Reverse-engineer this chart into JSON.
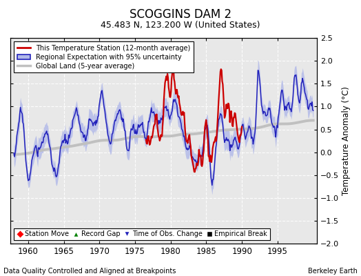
{
  "title": "SCOGGINS DAM 2",
  "subtitle": "45.483 N, 123.200 W (United States)",
  "ylabel": "Temperature Anomaly (°C)",
  "xlabel_left": "Data Quality Controlled and Aligned at Breakpoints",
  "xlabel_right": "Berkeley Earth",
  "ylim": [
    -2.0,
    2.5
  ],
  "xlim": [
    1957.5,
    2000.5
  ],
  "xticks": [
    1960,
    1965,
    1970,
    1975,
    1980,
    1985,
    1990,
    1995
  ],
  "yticks": [
    -2.0,
    -1.5,
    -1.0,
    -0.5,
    0.0,
    0.5,
    1.0,
    1.5,
    2.0,
    2.5
  ],
  "bg_color": "#e8e8e8",
  "grid_color": "white",
  "station_color": "#cc0000",
  "regional_color": "#2222bb",
  "regional_fill_color": "#b0b8e8",
  "global_color": "#c0c0c0",
  "legend1_labels": [
    "This Temperature Station (12-month average)",
    "Regional Expectation with 95% uncertainty",
    "Global Land (5-year average)"
  ],
  "legend2_labels": [
    "Station Move",
    "Record Gap",
    "Time of Obs. Change",
    "Empirical Break"
  ],
  "legend2_colors": [
    "red",
    "green",
    "#2222bb",
    "black"
  ],
  "legend2_markers": [
    "D",
    "^",
    "v",
    "s"
  ],
  "station_start": 1976.5,
  "station_end": 1990.0
}
